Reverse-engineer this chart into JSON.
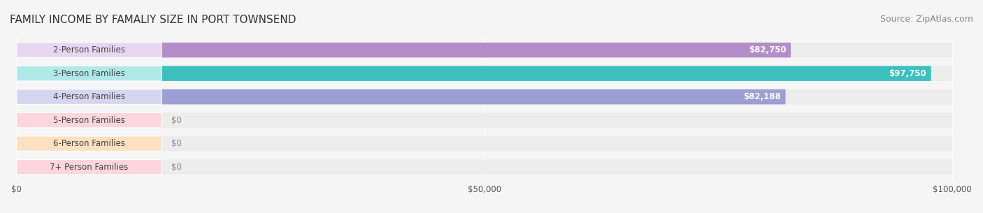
{
  "title": "FAMILY INCOME BY FAMALIY SIZE IN PORT TOWNSEND",
  "source": "Source: ZipAtlas.com",
  "categories": [
    "2-Person Families",
    "3-Person Families",
    "4-Person Families",
    "5-Person Families",
    "6-Person Families",
    "7+ Person Families"
  ],
  "values": [
    82750,
    97750,
    82188,
    0,
    0,
    0
  ],
  "bar_colors": [
    "#b48dc8",
    "#3dbfbf",
    "#9b9fd4",
    "#f4a0b0",
    "#f5c99a",
    "#f4a0b0"
  ],
  "label_bg_colors": [
    "#e8d5f0",
    "#b0e8e8",
    "#d5d5f0",
    "#fcd5dd",
    "#fde0c0",
    "#fcd5dd"
  ],
  "xmax": 100000,
  "xticks": [
    0,
    50000,
    100000
  ],
  "xtick_labels": [
    "$0",
    "$50,000",
    "$100,000"
  ],
  "background_color": "#f5f5f5",
  "bar_bg_color": "#ececec",
  "bar_height": 0.62,
  "title_fontsize": 11,
  "source_fontsize": 9,
  "label_fontsize": 8.5,
  "value_fontsize": 8.5
}
